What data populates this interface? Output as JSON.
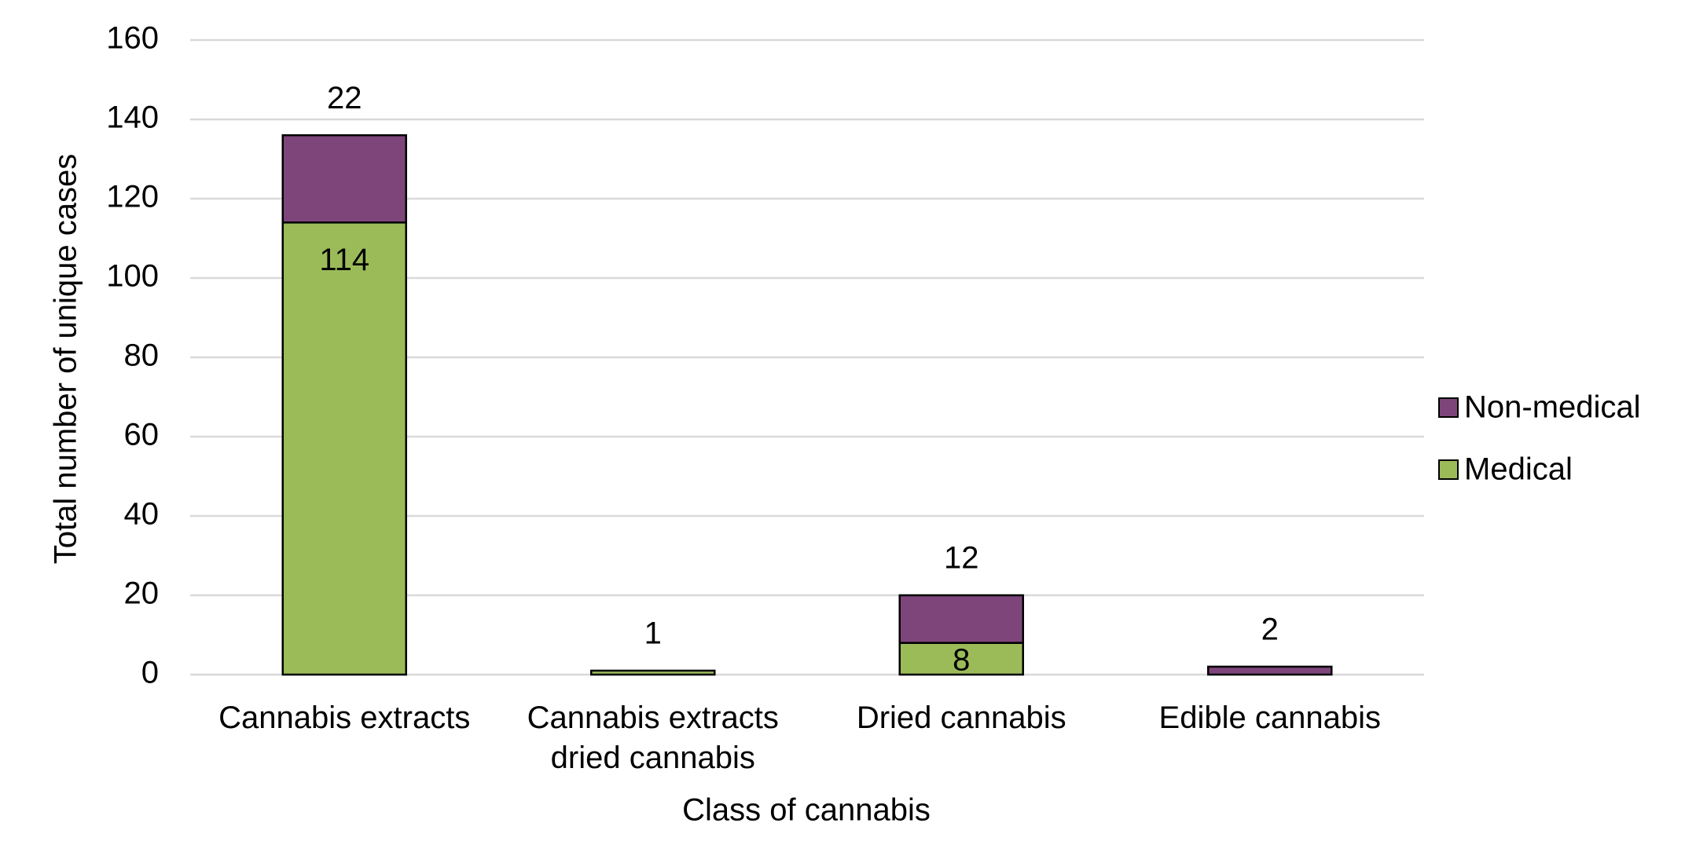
{
  "chart_data": {
    "type": "stacked_bar",
    "x_label": "Class of cannabis",
    "y_label": "Total number of unique cases",
    "categories": [
      "Cannabis extracts",
      "Cannabis extracts dried cannabis",
      "Dried cannabis",
      "Edible cannabis"
    ],
    "series": [
      {
        "name": "Medical",
        "color": "#9bbb59",
        "values": [
          114,
          1,
          8,
          0
        ]
      },
      {
        "name": "Non-medical",
        "color": "#7d457a",
        "values": [
          22,
          0,
          12,
          2
        ]
      }
    ],
    "ylim": [
      0,
      160
    ],
    "yticks": [
      0,
      20,
      40,
      60,
      80,
      100,
      120,
      140,
      160
    ],
    "grid": true,
    "legend": "right"
  }
}
